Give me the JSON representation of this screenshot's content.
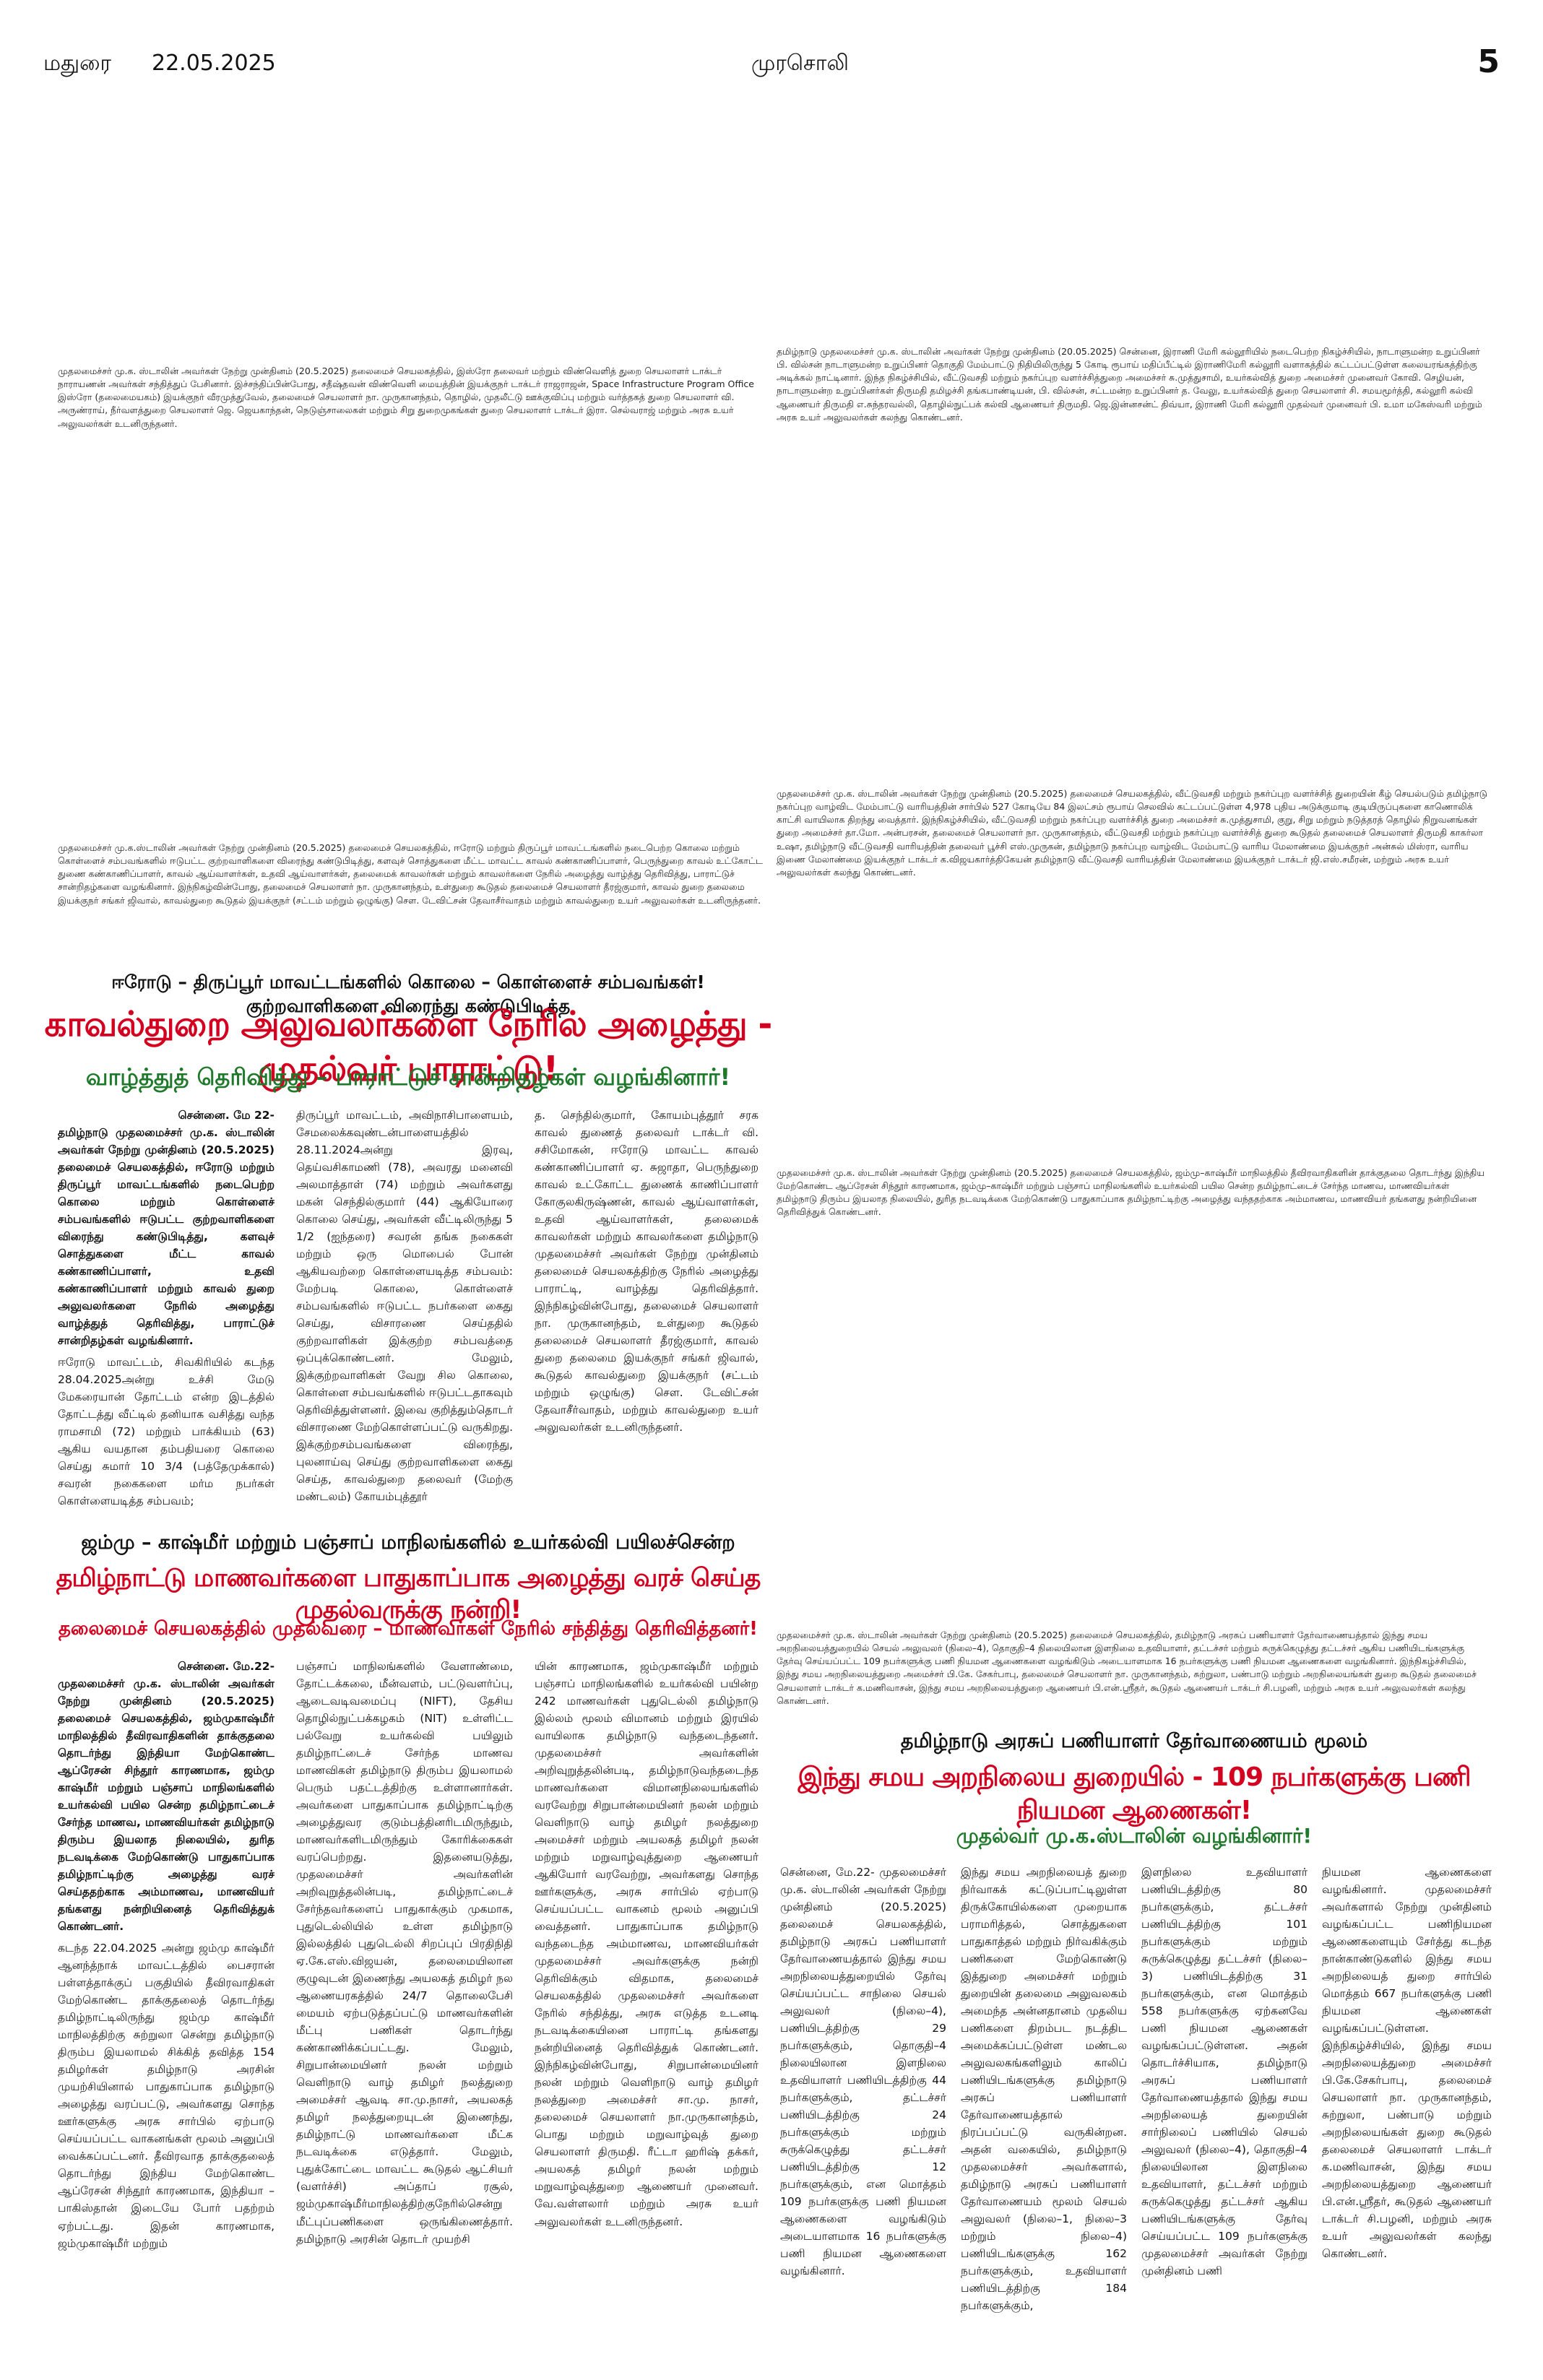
{
  "masthead": {
    "city": "மதுரை",
    "date": "22.05.2025",
    "paper": "முரசொலி",
    "page": "5"
  },
  "captions": {
    "isro": "முதலமைச்சர் மு.க. ஸ்டாலின் அவர்கள் நேற்று முன்தினம் (20.5.2025) தலைமைச் செயலகத்தில், இஸ்ரோ தலைவர் மற்றும் விண்வெளித் துறை செயலாளர் டாக்டர் நாராயணன் அவர்கள் சந்தித்துப் பேசினார். இச்சந்திப்பின்போது, சதீஷ்தவன் விண்வெளி மையத்தின் இயக்குநர் டாக்டர் ராஜராஜன், Space Infrastructure Program Office இஸ்ரோ (தலைமையகம்) இயக்குநர் வீரமுத்துவேல், தலைமைச் செயலாளர் நா. முருகானந்தம், தொழில், முதலீட்டு ஊக்குவிப்பு மற்றும் வர்த்தகத் துறை செயலாளர் வி. அருண்ராய், நீர்வளத்துறை செயலாளர் ஜெ. ஜெயகாந்தன், நெடுஞ்சாலைகள் மற்றும் சிறு துறைமுகங்கள் துறை செயலாளர் டாக்டர் இரா. செல்வராஜ் மற்றும் அரசு உயர் அலுவலர்கள் உடனிருந்தனர்.",
    "college": "தமிழ்நாடு முதலமைச்சர் மு.க. ஸ்டாலின் அவர்கள் நேற்று முன்தினம் (20.05.2025) சென்னை, இராணி மேரி கல்லூரியில் நடைபெற்ற நிகழ்ச்சியில், நாடாளுமன்ற உறுப்பினர் பி. வில்சன் நாடாளுமன்ற உறுப்பினர் தொகுதி மேம்பாட்டு நிதியிலிருந்து 5 கோடி ரூபாய் மதிப்பீட்டில் இராணிமேரி கல்லூரி வளாகத்தில் கட்டப்பட்டுள்ள கலையரங்கத்திற்கு அடிக்கல் நாட்டினார். இந்த நிகழ்ச்சியில், வீட்டுவசதி மற்றும் நகர்ப்புற வளர்ச்சித்துறை அமைச்சர் சு.முத்துசாமி, உயர்கல்வித் துறை அமைச்சர் முனைவர் கோவி. செழியன், நாடாளுமன்ற உறுப்பினர்கள் திருமதி தமிழச்சி தங்கபாண்டியன், பி. வில்சன், சட்டமன்ற உறுப்பினர் த. வேலு, உயர்கல்வித் துறை செயலாளர் சி. சமயமூர்த்தி, கல்லூரி கல்வி ஆணையர் திருமதி எ.சுந்தரவல்லி, தொழில்நுட்பக் கல்வி ஆணையர் திருமதி. ஜெ.இன்னசன்ட் திவ்யா, இராணி மேரி கல்லூரி முதல்வர் முனைவர் பி. உமா மகேஸ்வரி மற்றும் அரசு உயர் அலுவலர்கள் கலந்து கொண்டனர்.",
    "police": "முதலமைச்சர் மு.க.ஸ்டாலின் அவர்கள் நேற்று முன்தினம் (20.5.2025) தலைமைச் செயலகத்தில், ஈரோடு மற்றும் திருப்பூர் மாவட்டங்களில் நடைபெற்ற கொலை மற்றும் கொள்ளைச் சம்பவங்களில் ஈடுபட்ட குற்றவாளிகளை விரைந்து கண்டுபிடித்து, களவுச் சொத்துகளை மீட்ட மாவட்ட காவல் கண்காணிப்பாளர், பெருந்துறை காவல் உட்கோட்ட துணை கண்காணிப்பாளர், காவல் ஆய்வாளர்கள், உதவி ஆய்வாளர்கள், தலைமைக் காவலர்கள் மற்றும் காவலர்களை நேரில் அழைத்து வாழ்த்து தெரிவித்து, பாராட்டுச் சான்றிதழ்களை வழங்கினார். இந்நிகழ்வின்போது, தலைமைச் செயலாளர் நா. முருகானந்தம், உள்துறை கூடுதல் தலைமைச் செயலாளர் தீரஜ்குமார், காவல் துறை தலைமை இயக்குநர் சங்கர் ஜிவால், காவல்துறை கூடுதல் இயக்குநர் (சட்டம் மற்றும் ஒழுங்கு) செள. டேவிட்சன் தேவாசீர்வாதம் மற்றும் காவல்துறை உயர் அலுவலர்கள் உடனிருந்தனர்.",
    "housing": "முதலமைச்சர் மு.க. ஸ்டாலின் அவர்கள் நேற்று முன்தினம் (20.5.2025) தலைமைச் செயலகத்தில், வீட்டுவசதி மற்றும் நகர்ப்புற வளர்ச்சித் துறையின் கீழ் செயல்படும் தமிழ்நாடு நகர்ப்புற வாழ்விட மேம்பாட்டு வாரியத்தின் சார்பில் 527 கோடியே 84 இலட்சம் ரூபாய் செலவில் கட்டப்பட்டுள்ள 4,978 புதிய அடுக்குமாடி குடியிருப்புகளை காணொலிக் காட்சி வாயிலாக திறந்து வைத்தார். இந்நிகழ்ச்சியில், வீட்டுவசதி மற்றும் நகர்ப்புற வளர்ச்சித் துறை அமைச்சர் சு.முத்துசாமி, குறு, சிறு மற்றும் நடுத்தரத் தொழில் நிறுவனங்கள் துறை அமைச்சர் தா.மோ. அன்பரசன், தலைமைச் செயலாளர் நா. முருகானந்தம், வீட்டுவசதி மற்றும் நகர்ப்புற வளர்ச்சித் துறை கூடுதல் தலைமைச் செயலாளர் திருமதி காகர்லா உஷா, தமிழ்நாடு வீட்டுவசதி வாரியத்தின் தலைவர் பூச்சி எஸ்.முருகன், தமிழ்நாடு நகர்ப்புற வாழ்விட மேம்பாட்டு வாரிய மேலாண்மை இயக்குநர் அன்சுல் மிஸ்ரா, வாரிய இணை மேலாண்மை இயக்குநர் டாக்டர் க.விஜயகார்த்திகேயன் தமிழ்நாடு வீட்டுவசதி வாரியத்தின் மேலாண்மை இயக்குநர் டாக்டர் ஜி.எஸ்.சமீரன், மற்றும் அரசு உயர் அலுவலர்கள் கலந்து கொண்டனர்.",
    "kashmir": "முதலமைச்சர் மு.க. ஸ்டாலின் அவர்கள் நேற்று முன்தினம் (20.5.2025) தலைமைச் செயலகத்தில், ஜம்மு–காஷ்மீர் மாநிலத்தில் தீவிரவாதிகளின் தாக்குதலை தொடர்ந்து இந்திய மேற்கொண்ட ஆப்ரேசன் சிந்தூர் காரணமாக, ஜம்மு–காஷ்மீர் மற்றும் பஞ்சாப் மாநிலங்களில் உயர்கல்வி பயில சென்ற தமிழ்நாட்டைச் சேர்ந்த மாணவ, மாணவியர்கள் தமிழ்நாடு திரும்ப இயலாத நிலையில், துரித நடவடிக்கை மேற்கொண்டு பாதுகாப்பாக தமிழ்நாட்டிற்கு அழைத்து வந்ததற்காக அம்மாணவ, மாணவியர் தங்களது நன்றியினை தெரிவித்துக் கொண்டனர்.",
    "hrce": "முதலமைச்சர் மு.க. ஸ்டாலின் அவர்கள் நேற்று முன்தினம் (20.5.2025) தலைமைச் செயலகத்தில், தமிழ்நாடு அரசுப் பணியாளர் தேர்வாணையத்தால் இந்து சமய அறநிலையத்துறையில் செயல் அலுவலர் (நிலை–4), தொகுதி–4 நிலையிலான இளநிலை உதவியாளர், தட்டச்சர் மற்றும் சுருக்கெழுத்து தட்டச்சர் ஆகிய பணியிடங்களுக்கு தேர்வு செய்யப்பட்ட 109 நபர்களுக்கு பணி நியமன ஆணைகளை வழங்கிடும் அடையாளமாக 16 நபர்களுக்கு பணி நியமன ஆணைகளை வழங்கினார். இந்நிகழ்ச்சியில், இந்து சமய அறநிலையத்துறை அமைச்சர் பி.கே. சேகர்பாபு, தலைமைச் செயலாளர் நா. முருகானந்தம், சுற்றுலா, பண்பாடு மற்றும் அறநிலையங்கள் துறை கூடுதல் தலைமைச் செயலாளர் டாக்டர் க.மணிவாசன், இந்து சமய அறநிலையத்துறை ஆணையர் பி.என்.ஸ்ரீதர், கூடுதல் ஆணையர் டாக்டர் சி.பழனி, மற்றும் அரசு உயர் அலுவலர்கள் கலந்து கொண்டனர்."
  },
  "story_police": {
    "kicker": "ஈரோடு – திருப்பூர் மாவட்டங்களில் கொலை – கொள்ளைச் சம்பவங்கள்! குற்றவாளிகளை விரைந்து கண்டுபிடித்த",
    "headline": "காவல்துறை அலுவலர்களை நேரில் அழைத்து - முதல்வர் பாராட்டு!",
    "subhead": "வாழ்த்துத் தெரிவித்து – பாராட்டுச் சான்றிதழ்கள் வழங்கினார்!",
    "col1_lead": "சென்னை. மே 22-",
    "col1_bold": "தமிழ்நாடு முதலமைச்சர் மு.க. ஸ்டாலின் அவர்கள் நேற்று முன்தினம் (20.5.2025) தலைமைச் செயலகத்தில், ஈரோடு மற்றும் திருப்பூர் மாவட்டங்களில் நடைபெற்ற கொலை மற்றும் கொள்ளைச் சம்பவங்களில் ஈடுபட்ட குற்றவாளிகளை விரைந்து கண்டுபிடித்து, களவுச் சொத்துகளை மீட்ட காவல் கண்காணிப்பாளர், உதவி கண்காணிப்பாளர் மற்றும் காவல் துறை அலுவலர்களை நேரில் அழைத்து வாழ்த்துத் தெரிவித்து, பாராட்டுச் சான்றிதழ்கள் வழங்கினார்.",
    "col1_body": "ஈரோடு மாவட்டம், சிவகிரியில் கடந்த 28.04.2025அன்று உச்சி மேடு மேகரையான் தோட்டம் என்ற இடத்தில் தோட்டத்து வீட்டில் தனியாக வசித்து வந்த ராமசாமி (72) மற்றும் பாக்கியம் (63) ஆகிய வயதான தம்பதியரை கொலை செய்து சுமார் 10 3/4 (பத்தேமுக்கால்) சவரன் நகைகளை மர்ம நபர்கள் கொள்ளையடித்த சம்பவம்;",
    "col2": "திருப்பூர் மாவட்டம், அவிநாசிபாளையம், சேமலைக்கவுண்டன்பாளையத்தில் 28.11.2024அன்று இரவு, தெய்வசிகாமணி (78), அவரது மனைவி அலமாத்தாள் (74) மற்றும் அவர்களது மகன் செந்தில்குமார் (44) ஆகியோரை கொலை செய்து, அவர்கள் வீட்டிலிருந்து 5 1/2 (ஐந்தரை) சவரன் தங்க நகைகள் மற்றும் ஒரு மொபைல் போன் ஆகியவற்றை கொள்ளையடித்த சம்பவம்: மேற்படி கொலை, கொள்ளைச் சம்பவங்களில் ஈடுபட்ட நபர்களை கைது செய்து, விசாரணை செய்ததில் குற்றவாளிகள் இக்குற்ற சம்பவத்தை ஒப்புக்கொண்டனர். மேலும், இக்குற்றவாளிகள் வேறு சில கொலை, கொள்ளை சம்பவங்களில் ஈடுபட்டதாகவும் தெரிவித்துள்ளனர். இவை குறித்தும்தொடர் விசாரணை மேற்கொள்ளப்பட்டு வருகிறது. இக்குற்றசம்பவங்களை விரைந்து, புலனாய்வு செய்து குற்றவாளிகளை கைது செய்த, காவல்துறை தலைவர் (மேற்கு மண்டலம்) கோயம்புத்தூர்",
    "col3": "த. செந்தில்குமார், கோயம்புத்தூர் சரக காவல் துணைத் தலைவர் டாக்டர் வி. சசிமோகன், ஈரோடு மாவட்ட காவல் கண்காணிப்பாளர் ஏ. சுஜாதா, பெருந்துறை காவல் உட்கோட்ட துணைக் காணிப்பாளர் கோகுலகிருஷ்ணன், காவல் ஆய்வாளர்கள், உதவி ஆய்வாளர்கள், தலைமைக் காவலர்கள் மற்றும் காவலர்களை தமிழ்நாடு முதலமைச்சர் அவர்கள் நேற்று முன்தினம் தலைமைச் செயலகத்திற்கு நேரில் அழைத்து பாராட்டி, வாழ்த்து தெரிவித்தார். இந்நிகழ்வின்போது, தலைமைச் செயலாளர் நா. முருகானந்தம், உள்துறை கூடுதல் தலைமைச் செயலாளர் தீரஜ்குமார், காவல் துறை தலைமை இயக்குநர் சங்கர் ஜிவால், கூடுதல் காவல்துறை இயக்குநர் (சட்டம் மற்றும் ஒழுங்கு) செள. டேவிட்சன் தேவாசீர்வாதம், மற்றும் காவல்துறை உயர் அலுவலர்கள் உடனிருந்தனர்."
  },
  "story_kashmir": {
    "kicker": "ஜம்மு – காஷ்மீர் மற்றும் பஞ்சாப் மாநிலங்களில் உயர்கல்வி பயிலச்சென்ற",
    "headline": "தமிழ்நாட்டு மாணவர்களை பாதுகாப்பாக அழைத்து வரச் செய்த முதல்வருக்கு நன்றி!",
    "subhead": "தலைமைச் செயலகத்தில் முதல்வரை – மாணவர்கள் நேரில் சந்தித்து தெரிவித்தனர்!",
    "col1_lead": "சென்னை. மே.22-",
    "col1_bold": "முதலமைச்சர் மு.க. ஸ்டாலின் அவர்கள் நேற்று முன்தினம் (20.5.2025) தலைமைச் செயலகத்தில், ஜம்முகாஷ்மீர் மாநிலத்தில் தீவிரவாதிகளின் தாக்குதலை தொடர்ந்து இந்தியா மேற்கொண்ட ஆப்ரேசன் சிந்தூர் காரணமாக, ஜம்மு காஷ்மீர் மற்றும் பஞ்சாப் மாநிலங்களில் உயர்கல்வி பயில சென்ற தமிழ்நாட்டைச் சேர்ந்த மாணவ, மாணவியர்கள் தமிழ்நாடு திரும்ப இயலாத நிலையில், துரித நடவடிக்கை மேற்கொண்டு பாதுகாப்பாக தமிழ்நாட்டிற்கு அழைத்து வரச் செய்ததற்காக அம்மாணவ, மாணவியர் தங்களது நன்றியினைத் தெரிவித்துக் கொண்டனர்.",
    "col1_body": "கடந்த 22.04.2025 அன்று ஜம்மு காஷ்மீர் ஆனந்த்நாக் மாவட்டத்தில் பைசரான் பள்ளத்தாக்குப் பகுதியில் தீவிரவாதிகள் மேற்கொண்ட தாக்குதலைத் தொடர்ந்து தமிழ்நாட்டிலிருந்து ஜம்மு காஷ்மீர் மாநிலத்திற்கு சுற்றுலா சென்று தமிழ்நாடு திரும்ப இயலாமல் சிக்கித் தவித்த 154 தமிழர்கள் தமிழ்நாடு அரசின் முயற்சியினால் பாதுகாப்பாக தமிழ்நாடு அழைத்து வரப்பட்டு, அவர்களது சொந்த ஊர்களுக்கு அரசு சார்பில் ஏற்பாடு செய்யப்பட்ட வாகனங்கள் மூலம் அனுப்பி வைக்கப்பட்டனர். தீவிரவாத தாக்குதலைத் தொடர்ந்து இந்திய மேற்கொண்ட ஆப்ரேசன் சிந்தூர் காரணமாக, இந்தியா – பாகிஸ்தான் இடையே போர் பதற்றம் ஏற்பட்டது. இதன் காரணமாக, ஜம்முகாஷ்மீர் மற்றும்",
    "col2": "பஞ்சாப் மாநிலங்களில் வேளாண்மை, தோட்டக்கலை, மீன்வளம், பட்டுவளர்ப்பு, ஆடைவடிவமைப்பு (NIFT), தேசிய தொழில்நுட்பக்கழகம் (NIT) உள்ளிட்ட பல்வேறு உயர்கல்வி பயிலும் தமிழ்நாட்டைச் சேர்ந்த மாணவ மாணவிகள் தமிழ்நாடு திரும்ப இயலாமல் பெரும் பதட்டத்திற்கு உள்ளானார்கள். அவர்களை பாதுகாப்பாக தமிழ்நாட்டிற்கு அழைத்துவர குடும்பத்தினரிடமிருந்தும், மாணவர்களிடமிருந்தும் கோரிக்கைகள் வரப்பெற்றது. இதனையடுத்து, முதலமைச்சர் அவர்களின் அறிவுறுத்தலின்படி, தமிழ்நாட்டைச் சேர்ந்தவர்களைப் பாதுகாக்கும் முகமாக, புதுடெல்லியில் உள்ள தமிழ்நாடு இல்லத்தில் புதுடெல்லி சிறப்புப் பிரதிநிதி ஏ.கே.எஸ்.விஜயன், தலைமையிலான குழுவுடன் இணைந்து அயலகத் தமிழர் நல ஆணையரகத்தில் 24/7 தொலைபேசி மையம் ஏற்படுத்தப்பட்டு மாணவர்களின் மீட்பு பணிகள் தொடர்ந்து கண்காணிக்கப்பட்டது. மேலும், சிறுபான்மையினர் நலன் மற்றும் வெளிநாடு வாழ் தமிழர் நலத்துறை அமைச்சர் ஆவடி சா.மு.நாசர், அயலகத் தமிழர் நலத்துறையுடன் இணைந்து, தமிழ்நாட்டு மாணவர்களை மீட்க நடவடிக்கை எடுத்தார். மேலும், புதுக்கோட்டை மாவட்ட கூடுதல் ஆட்சியர் (வளர்ச்சி) அப்தாப் ரசூல், ஜம்முகாஷ்மீர்மாநிலத்திற்குநேரில்சென்று மீட்புப்பணிகளை ஒருங்கிணைத்தார். தமிழ்நாடு அரசின் தொடர் முயற்சி",
    "col3": "யின் காரணமாக, ஜம்முகாஷ்மீர் மற்றும் பஞ்சாப் மாநிலங்களில் உயர்கல்வி பயின்ற 242 மாணவர்கள் புதுடெல்லி தமிழ்நாடு இல்லம் மூலம் விமானம் மற்றும் இரயில் வாயிலாக தமிழ்நாடு வந்தடைந்தனர். முதலமைச்சர் அவர்களின் அறிவுறுத்தலின்படி, தமிழ்நாடுவந்தடைந்த மாணவர்களை விமானநிலையங்களில் வரவேற்று சிறுபான்மையினர் நலன் மற்றும் வெளிநாடு வாழ் தமிழர் நலத்துறை அமைச்சர் மற்றும் அயலகத் தமிழர் நலன் மற்றும் மறுவாழ்வுத்துறை ஆணையர் ஆகியோர் வரவேற்று, அவர்களது சொந்த ஊர்களுக்கு, அரசு சார்பில் ஏற்பாடு செய்யப்பட்ட வாகனம் மூலம் அனுப்பி வைத்தனர். பாதுகாப்பாக தமிழ்நாடு வந்தடைந்த அம்மாணவ, மாணவியர்கள் முதலமைச்சர் அவர்களுக்கு நன்றி தெரிவிக்கும் விதமாக, தலைமைச் செயலகத்தில் முதலமைச்சர் அவர்களை நேரில் சந்தித்து, அரசு எடுத்த உடனடி நடவடிக்கையினை பாராட்டி தங்களது நன்றியினைத் தெரிவித்துக் கொண்டனர். இந்நிகழ்வின்போது, சிறுபான்மையினர் நலன் மற்றும் வெளிநாடு வாழ் தமிழர் நலத்துறை அமைச்சர் சா.மு. நாசர், தலைமைச் செயலாளர் நா.முருகானந்தம், பொது மற்றும் மறுவாழ்வுத் துறை செயலாளர் திருமதி. ரீட்டா ஹரிஷ் தக்கர், அயலகத் தமிழர் நலன் மற்றும் மறுவாழ்வுத்துறை ஆணையர் முனைவர். வே.வள்ளலார் மற்றும் அரசு உயர் அலுவலர்கள் உடனிருந்தனர்."
  },
  "story_hrce": {
    "kicker": "தமிழ்நாடு அரசுப் பணியாளர் தேர்வாணையம் மூலம்",
    "headline": "இந்து சமய அறநிலைய துறையில் - 109 நபர்களுக்கு பணி நியமன ஆணைகள்!",
    "subhead": "முதல்வர் மு.க.ஸ்டாலின் வழங்கினார்!",
    "col1": "சென்னை, மே.22- முதலமைச்சர் மு.க. ஸ்டாலின் அவர்கள் நேற்று முன்தினம் (20.5.2025) தலைமைச் செயலகத்தில், தமிழ்நாடு அரசுப் பணியாளர் தேர்வாணையத்தால் இந்து சமய அறநிலையத்துறையில் தேர்வு செய்யப்பட்ட சாநிலை செயல் அலுவலர் (நிலை–4), பணியிடத்திற்கு 29 நபர்களுக்கும், தொகுதி–4 நிலையிலான இளநிலை உதவியாளர் பணியிடத்திற்கு 44 நபர்களுக்கும், தட்டச்சர் பணியிடத்திற்கு 24 நபர்களுக்கும் மற்றும் சுருக்கெழுத்து தட்டச்சர் பணியிடத்திற்கு 12 நபர்களுக்கும், என மொத்தம் 109 நபர்களுக்கு பணி நியமன ஆணைகளை வழங்கிடும் அடையாளமாக 16 நபர்களுக்கு பணி நியமன ஆணைகளை வழங்கினார்.",
    "col2": "இந்து சமய அறநிலையத் துறை நிர்வாகக் கட்டுப்பாட்டிலுள்ள திருக்கோயில்களை முறையாக பராமரித்தல், சொத்துகளை பாதுகாத்தல் மற்றும் நிர்வகிக்கும் பணிகளை மேற்கொண்டு இத்துறை அமைச்சர் மற்றும் துறையின் தலைமை அலுவலகம் அமைந்த அன்னதானம் முதலிய பணிகளை திறம்பட நடத்திட அமைக்கப்பட்டுள்ள மண்டல அலுவலகங்களிலும் காலிப் பணியிடங்களுக்கு தமிழ்நாடு அரசுப் பணியாளர் தேர்வாணையத்தால் நிரப்பப்பட்டு வருகின்றன. அதன் வகையில், தமிழ்நாடு முதலமைச்சர் அவர்களால், தமிழ்நாடு அரசுப் பணியாளர் தேர்வாணையம் மூலம் செயல் அலுவலர் (நிலை–1, நிலை–3 மற்றும் நிலை–4) பணியிடங்களுக்கு 162 நபர்களுக்கும், உதவியாளர் பணியிடத்திற்கு 184 நபர்களுக்கும்,",
    "col3": "இளநிலை உதவியாளர் பணியிடத்திற்கு 80 நபர்களுக்கும், தட்டச்சர் பணியிடத்திற்கு 101 நபர்களுக்கும் மற்றும் சுருக்கெழுத்து தட்டச்சர் (நிலை–3) பணியிடத்திற்கு 31 நபர்களுக்கும், என மொத்தம் 558 நபர்களுக்கு ஏற்கனவே பணி நியமன ஆணைகள் வழங்கப்பட்டுள்ளன. அதன் தொடர்ச்சியாக, தமிழ்நாடு அரசுப் பணியாளர் தேர்வாணையத்தால் இந்து சமய அறநிலையத் துறையின் சார்நிலைப் பணியில் செயல் அலுவலர் (நிலை–4), தொகுதி–4 நிலையிலான இளநிலை உதவியாளர், தட்டச்சர் மற்றும் சுருக்கெழுத்து தட்டச்சர் ஆகிய பணியிடங்களுக்கு தேர்வு செய்யப்பட்ட 109 நபர்களுக்கு முதலமைச்சர் அவர்கள் நேற்று முன்தினம் பணி",
    "col4": "நியமன ஆணைகளை வழங்கினார். முதலமைச்சர் அவர்களால் நேற்று முன்தினம் வழங்கப்பட்ட பணிநியமன ஆணைகளையும் சேர்த்து கடந்த நான்காண்டுகளில் இந்து சமய அறநிலையத் துறை சார்பில் மொத்தம் 667 நபர்களுக்கு பணி நியமன ஆணைகள் வழங்கப்பட்டுள்ளன. இந்நிகழ்ச்சியில், இந்து சமய அறநிலையத்துறை அமைச்சர் பி.கே.சேகர்பாபு, தலைமைச் செயலாளர் நா. முருகானந்தம், சுற்றுலா, பண்பாடு மற்றும் அறநிலையங்கள் துறை கூடுதல் தலைமைச் செயலாளர் டாக்டர் க.மணிவாசன், இந்து சமய அறநிலையத்துறை ஆணையர் பி.என்.ஸ்ரீதர், கூடுதல் ஆணையர் டாக்டர் சி.பழனி, மற்றும் அரசு உயர் அலுவலர்கள் கலந்து கொண்டனர்."
  }
}
